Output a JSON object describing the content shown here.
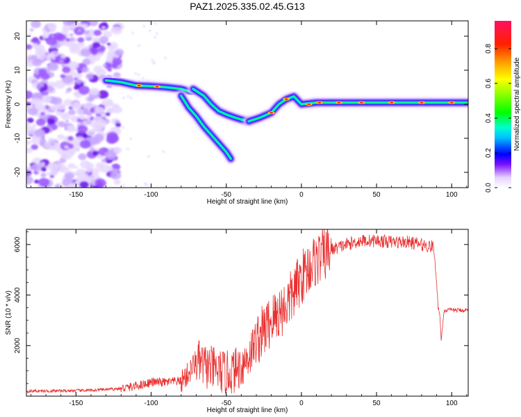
{
  "title": "PAZ1.2025.335.02.45.G13",
  "chart_data": [
    {
      "type": "heatmap",
      "xlabel": "Height of straight line (km)",
      "ylabel": "Frequency (Hz)",
      "xlim": [
        -183,
        111
      ],
      "ylim": [
        -24.5,
        24.5
      ],
      "xticks": [
        -150,
        -100,
        -50,
        0,
        50,
        100
      ],
      "yticks": [
        -20,
        -10,
        0,
        10,
        20
      ],
      "colorbar": {
        "label": "Normalized spectral amplitude",
        "range": [
          0,
          0.96
        ],
        "ticks": [
          0.0,
          0.2,
          0.4,
          0.6,
          0.8
        ]
      },
      "ridges": [
        {
          "x": [
            -130,
            -120,
            -110,
            -100,
            -90,
            -80,
            -72
          ],
          "y": [
            7,
            6.5,
            5.5,
            5.3,
            5,
            4.5,
            3.5
          ]
        },
        {
          "x": [
            -80,
            -75,
            -70,
            -65,
            -60,
            -55,
            -50,
            -47
          ],
          "y": [
            2.5,
            -1,
            -3.5,
            -6.5,
            -9,
            -11.5,
            -14,
            -16
          ]
        },
        {
          "x": [
            -72,
            -65,
            -60,
            -55,
            -50,
            -45,
            -40,
            -35
          ],
          "y": [
            4.5,
            2.5,
            0,
            -2,
            -3,
            -3.8,
            -4.5,
            -5
          ]
        },
        {
          "x": [
            -35,
            -28,
            -20,
            -15,
            -10,
            -5,
            0,
            10,
            30,
            50,
            70,
            90,
            100,
            111
          ],
          "y": [
            -5,
            -4,
            -2.5,
            0,
            1.5,
            2.3,
            0,
            0.5,
            0.5,
            0.5,
            0.5,
            0.5,
            0.5,
            0.5
          ]
        }
      ]
    },
    {
      "type": "line",
      "xlabel": "Height of straight line (km)",
      "ylabel": "SNR (10 * v/v)",
      "xlim": [
        -183,
        111
      ],
      "ylim": [
        0,
        6600
      ],
      "xticks": [
        -150,
        -100,
        -50,
        0,
        50,
        100
      ],
      "yticks": [
        2000,
        4000,
        6000
      ],
      "series": [
        {
          "color": "#e83030",
          "x": [
            -183,
            -160,
            -140,
            -120,
            -110,
            -100,
            -90,
            -80,
            -75,
            -70,
            -65,
            -60,
            -55,
            -50,
            -45,
            -40,
            -35,
            -30,
            -25,
            -20,
            -15,
            -10,
            -5,
            0,
            5,
            10,
            15,
            20,
            25,
            30,
            40,
            50,
            60,
            70,
            80,
            88,
            90,
            91,
            92,
            93,
            95,
            100,
            111
          ],
          "y": [
            200,
            210,
            230,
            300,
            400,
            550,
            550,
            600,
            900,
            1400,
            1200,
            1100,
            1000,
            900,
            1000,
            1200,
            1600,
            2200,
            2600,
            3000,
            3300,
            3600,
            4100,
            4700,
            5100,
            5400,
            5600,
            5800,
            5900,
            6000,
            6150,
            6150,
            6100,
            6100,
            6000,
            5900,
            4500,
            3500,
            3300,
            2200,
            3400,
            3400,
            3400
          ]
        }
      ]
    }
  ]
}
